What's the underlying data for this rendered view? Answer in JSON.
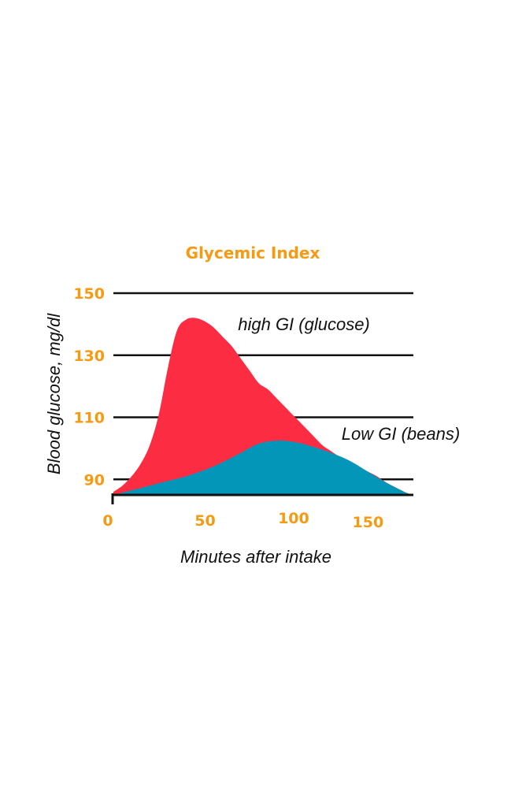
{
  "chart_data": {
    "type": "area",
    "title": "Glycemic Index",
    "xlabel": "Minutes after intake",
    "ylabel": "Blood glucose, mg/dl",
    "xlim": [
      0,
      165
    ],
    "ylim": [
      85,
      150
    ],
    "x_ticks": [
      0,
      50,
      100,
      150
    ],
    "y_ticks": [
      90,
      110,
      130,
      150
    ],
    "grid": true,
    "series": [
      {
        "name": "high GI (glucose)",
        "color": "#fc2c42",
        "x": [
          0,
          5,
          10,
          15,
          20,
          25,
          30,
          35,
          40,
          45,
          50,
          55,
          60,
          65,
          70,
          75,
          80,
          85,
          90,
          95,
          100,
          105,
          110,
          115,
          120,
          125,
          130,
          135,
          140,
          145,
          150,
          155,
          160,
          163
        ],
        "y": [
          86,
          88,
          91,
          95,
          101,
          111,
          126,
          138,
          141.5,
          142,
          141,
          139,
          136,
          133,
          129,
          125,
          121,
          119,
          116,
          113,
          110,
          107,
          104,
          101,
          99,
          97,
          95.5,
          94,
          92.5,
          91,
          89,
          87.5,
          86,
          85.3
        ]
      },
      {
        "name": "Low GI (beans)",
        "color": "#0496b9",
        "x": [
          0,
          10,
          20,
          30,
          40,
          50,
          60,
          70,
          80,
          90,
          100,
          110,
          120,
          130,
          140,
          150,
          160,
          163
        ],
        "y": [
          85,
          86.5,
          88,
          89.5,
          91,
          93,
          95.5,
          98.5,
          101.5,
          102.5,
          102,
          100.5,
          98.5,
          96,
          92.5,
          89,
          86,
          85.3
        ]
      }
    ],
    "annotations": [
      "high GI (glucose)",
      "Low GI (beans)"
    ],
    "colors": {
      "title": "#f69a14",
      "ticks": "#f69a14",
      "gridlines": "#111111"
    }
  }
}
